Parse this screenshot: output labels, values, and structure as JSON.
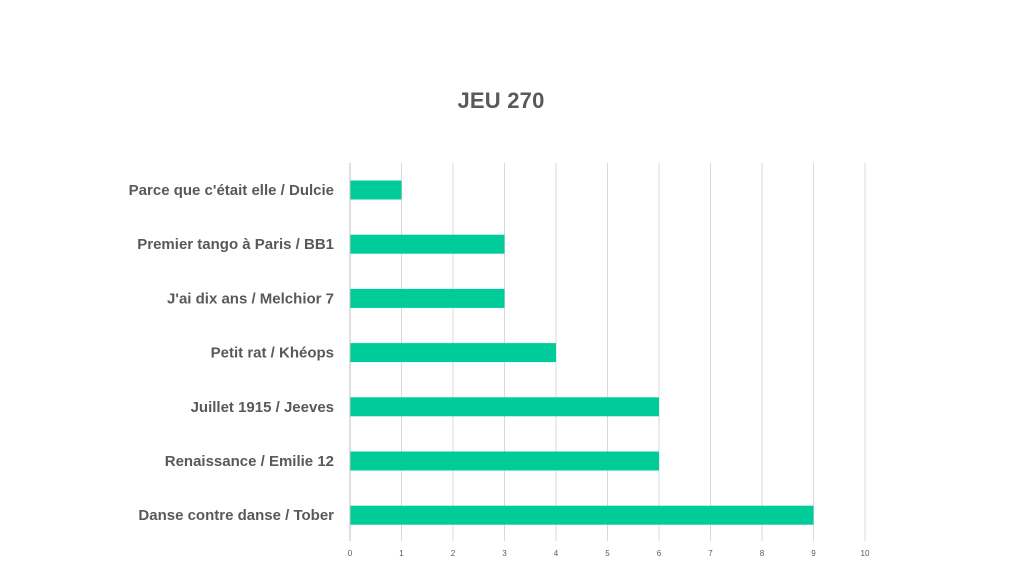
{
  "chart_data": {
    "type": "bar",
    "orientation": "horizontal",
    "title": "JEU 270",
    "categories": [
      "Parce que c'était elle / Dulcie",
      "Premier tango à Paris  / BB1",
      "J'ai dix ans / Melchior 7",
      "Petit rat / Khéops",
      "Juillet 1915 / Jeeves",
      "Renaissance / Emilie 12",
      "Danse contre danse / Tober"
    ],
    "values": [
      1,
      3,
      3,
      4,
      6,
      6,
      9
    ],
    "xlim": [
      0,
      10
    ],
    "xticks": [
      "0",
      "1",
      "2",
      "3",
      "4",
      "5",
      "6",
      "7",
      "8",
      "9",
      "10"
    ],
    "xlabel": "",
    "ylabel": "",
    "grid": "vertical",
    "legend": "none",
    "bar_color": "#00CC99"
  }
}
